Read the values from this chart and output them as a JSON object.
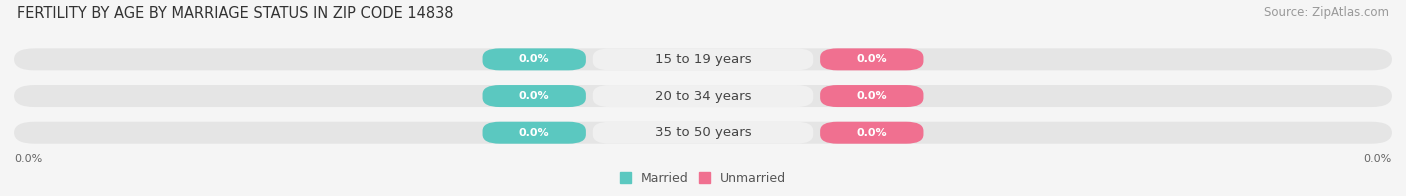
{
  "title": "FERTILITY BY AGE BY MARRIAGE STATUS IN ZIP CODE 14838",
  "source": "Source: ZipAtlas.com",
  "categories": [
    "15 to 19 years",
    "20 to 34 years",
    "35 to 50 years"
  ],
  "married_values": [
    0.0,
    0.0,
    0.0
  ],
  "unmarried_values": [
    0.0,
    0.0,
    0.0
  ],
  "married_color": "#5BC8C0",
  "unmarried_color": "#F07090",
  "bar_bg_color": "#E5E5E5",
  "center_pill_color": "#F0F0F0",
  "bar_height": 0.6,
  "x_left_label": "0.0%",
  "x_right_label": "0.0%",
  "title_fontsize": 10.5,
  "source_fontsize": 8.5,
  "label_fontsize": 8.0,
  "category_fontsize": 9.5,
  "legend_fontsize": 9,
  "background_color": "#F5F5F5",
  "married_label": "Married",
  "unmarried_label": "Unmarried"
}
